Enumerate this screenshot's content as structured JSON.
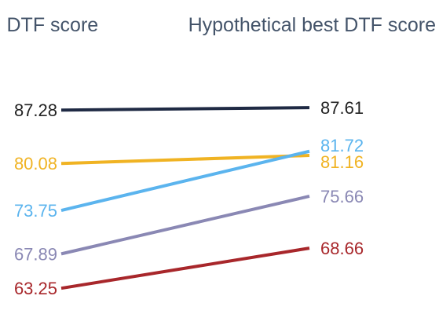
{
  "chart_data": {
    "type": "line",
    "style": "slope",
    "x": [
      "Actual DTF score",
      "Hypothetical best DTF score"
    ],
    "column_titles_visible": [
      "l DTF score",
      "Hypothetical best DTF score"
    ],
    "ylim": [
      62,
      89
    ],
    "grid": false,
    "legend": "none",
    "series": [
      {
        "values": [
          87.28,
          87.61
        ],
        "labels": [
          "87.28",
          "87.61"
        ],
        "color": "#1f2a44"
      },
      {
        "values": [
          80.08,
          81.16
        ],
        "labels": [
          "80.08",
          "81.16"
        ],
        "color": "#f0b323"
      },
      {
        "values": [
          73.75,
          81.72
        ],
        "labels": [
          "73.75",
          "81.72"
        ],
        "color": "#5bb4ee"
      },
      {
        "values": [
          67.89,
          75.66
        ],
        "labels": [
          "67.89",
          "75.66"
        ],
        "color": "#8a88b4"
      },
      {
        "values": [
          63.25,
          68.66
        ],
        "labels": [
          "63.25",
          "68.66"
        ],
        "color": "#a8272b"
      }
    ]
  }
}
